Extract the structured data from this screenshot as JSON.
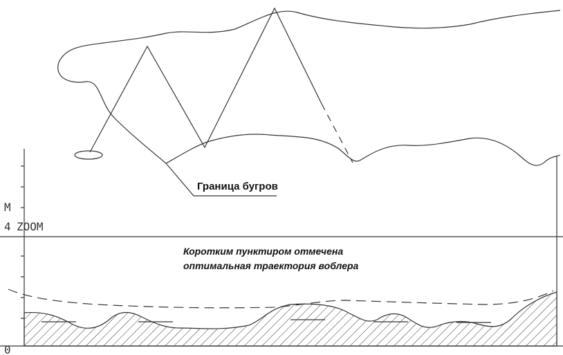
{
  "map_label": "Граница бугров",
  "note": [
    "Коротким пунктиром отмечена",
    "оптимальная траектория воблера"
  ],
  "profile": {
    "unit": "M",
    "depth_max": "4",
    "zoom": "ZOOM",
    "depth_min": "0"
  }
}
